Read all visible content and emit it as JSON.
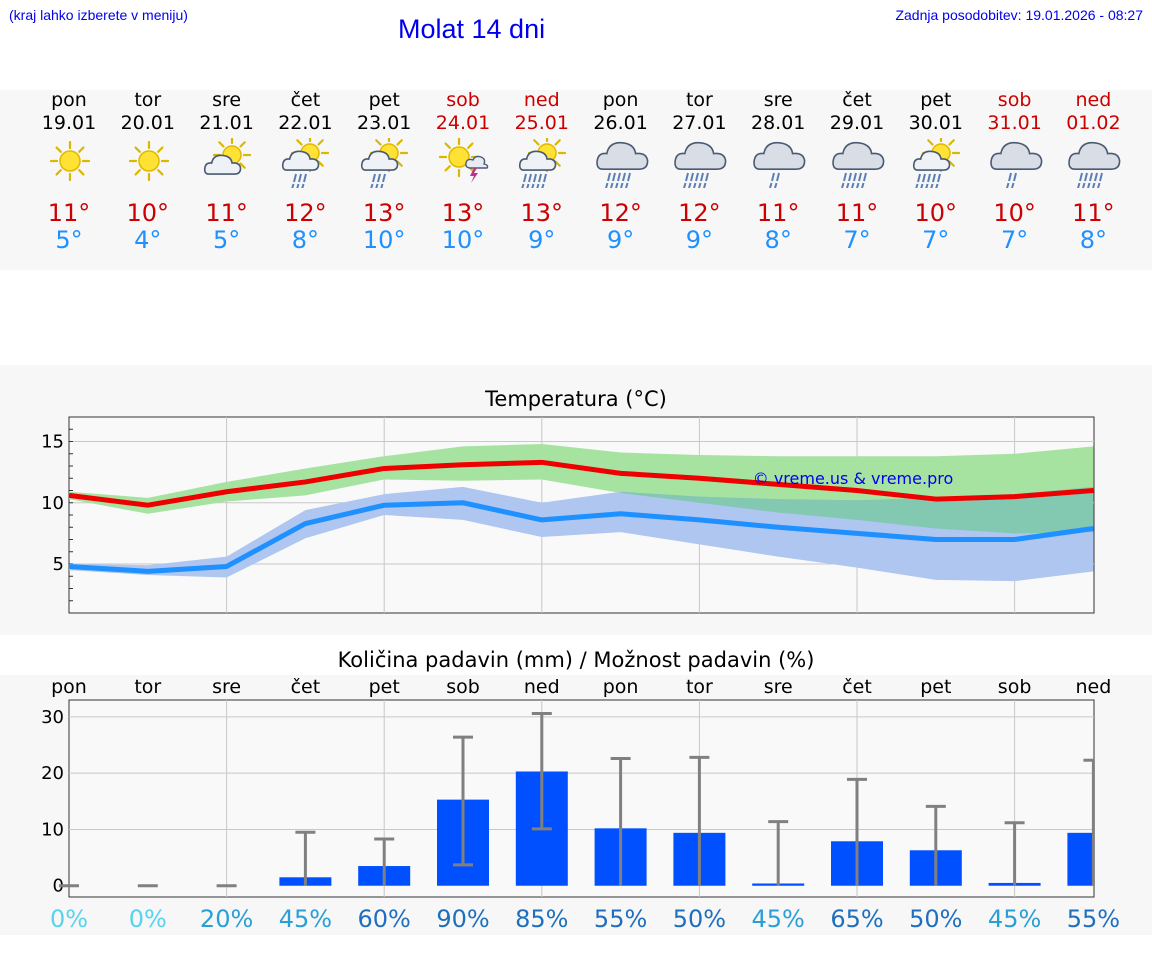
{
  "header": {
    "hint": "(kraj lahko izberete v meniju)",
    "title": "Molat 14 dni",
    "updated": "Zadnja posodobitev: 19.01.2026 - 08:27"
  },
  "days": [
    {
      "name": "pon",
      "date": "19.01",
      "weekend": false,
      "icon": "sunny-icon",
      "tmax": "11°",
      "tmin": "5°"
    },
    {
      "name": "tor",
      "date": "20.01",
      "weekend": false,
      "icon": "sunny-icon",
      "tmax": "10°",
      "tmin": "4°"
    },
    {
      "name": "sre",
      "date": "21.01",
      "weekend": false,
      "icon": "sun-cloud-icon",
      "tmax": "11°",
      "tmin": "5°"
    },
    {
      "name": "čet",
      "date": "22.01",
      "weekend": false,
      "icon": "sun-cloud-rain-icon",
      "tmax": "12°",
      "tmin": "8°"
    },
    {
      "name": "pet",
      "date": "23.01",
      "weekend": false,
      "icon": "sun-cloud-rain-icon",
      "tmax": "13°",
      "tmin": "10°"
    },
    {
      "name": "sob",
      "date": "24.01",
      "weekend": true,
      "icon": "sun-thunder-icon",
      "tmax": "13°",
      "tmin": "10°"
    },
    {
      "name": "ned",
      "date": "25.01",
      "weekend": true,
      "icon": "sun-heavy-rain-icon",
      "tmax": "13°",
      "tmin": "9°"
    },
    {
      "name": "pon",
      "date": "26.01",
      "weekend": false,
      "icon": "cloud-heavy-rain-icon",
      "tmax": "12°",
      "tmin": "9°"
    },
    {
      "name": "tor",
      "date": "27.01",
      "weekend": false,
      "icon": "cloud-heavy-rain-icon",
      "tmax": "12°",
      "tmin": "9°"
    },
    {
      "name": "sre",
      "date": "28.01",
      "weekend": false,
      "icon": "cloud-rain-icon",
      "tmax": "11°",
      "tmin": "8°"
    },
    {
      "name": "čet",
      "date": "29.01",
      "weekend": false,
      "icon": "cloud-heavy-rain-icon",
      "tmax": "11°",
      "tmin": "7°"
    },
    {
      "name": "pet",
      "date": "30.01",
      "weekend": false,
      "icon": "sun-heavy-rain-icon",
      "tmax": "10°",
      "tmin": "7°"
    },
    {
      "name": "sob",
      "date": "31.01",
      "weekend": true,
      "icon": "cloud-rain-icon",
      "tmax": "10°",
      "tmin": "7°"
    },
    {
      "name": "ned",
      "date": "01.02",
      "weekend": true,
      "icon": "cloud-heavy-rain-icon",
      "tmax": "11°",
      "tmin": "8°"
    }
  ],
  "colors": {
    "max_line": "#ee0000",
    "min_line": "#1e90ff",
    "max_band": "#a6e3a1",
    "min_band": "#aec6f0",
    "overlap_band": "#7ec8a8",
    "bar": "#0050ff",
    "whisker": "#808080"
  },
  "chart_data": [
    {
      "type": "line",
      "title": "Temperatura (°C)",
      "watermark": "© vreme.us & vreme.pro",
      "x": [
        0,
        1,
        2,
        3,
        4,
        5,
        6,
        7,
        8,
        9,
        10,
        11,
        12,
        13
      ],
      "ylim": [
        1,
        17
      ],
      "yticks": [
        5,
        10,
        15
      ],
      "series": [
        {
          "name": "max",
          "values": [
            10.6,
            9.8,
            10.9,
            11.7,
            12.8,
            13.1,
            13.3,
            12.4,
            12.0,
            11.5,
            11.0,
            10.3,
            10.5,
            11.0
          ],
          "band_low": [
            10.3,
            9.1,
            10.1,
            10.6,
            11.9,
            11.8,
            11.9,
            10.8,
            10.0,
            9.2,
            8.6,
            7.9,
            7.5,
            7.6
          ],
          "band_high": [
            10.9,
            10.4,
            11.7,
            12.8,
            13.8,
            14.6,
            14.8,
            14.1,
            13.9,
            13.8,
            13.8,
            13.8,
            14.0,
            14.6
          ]
        },
        {
          "name": "min",
          "values": [
            4.8,
            4.4,
            4.8,
            8.3,
            9.8,
            10.0,
            8.6,
            9.1,
            8.6,
            8.0,
            7.5,
            7.0,
            7.0,
            7.9
          ],
          "band_low": [
            4.5,
            4.1,
            3.9,
            7.1,
            9.0,
            8.6,
            7.2,
            7.6,
            6.6,
            5.6,
            4.7,
            3.7,
            3.6,
            4.4
          ],
          "band_high": [
            5.0,
            4.9,
            5.6,
            9.4,
            10.7,
            11.3,
            10.0,
            10.9,
            10.5,
            10.3,
            10.2,
            10.4,
            10.7,
            11.3
          ]
        }
      ]
    },
    {
      "type": "bar",
      "title": "Količina padavin (mm) / Možnost padavin (%)",
      "categories": [
        "pon",
        "tor",
        "sre",
        "čet",
        "pet",
        "sob",
        "ned",
        "pon",
        "tor",
        "sre",
        "čet",
        "pet",
        "sob",
        "ned"
      ],
      "ylim": [
        -2,
        33
      ],
      "yticks": [
        0,
        10,
        20,
        30
      ],
      "values": [
        0,
        0,
        0,
        1.5,
        3.5,
        15.3,
        20.3,
        10.2,
        9.4,
        0.4,
        7.9,
        6.3,
        0.5,
        9.4
      ],
      "whisker_low": [
        0,
        0,
        0,
        0,
        0,
        3.7,
        10.1,
        0,
        0,
        0,
        0,
        0,
        0,
        0
      ],
      "whisker_high": [
        0,
        0,
        0,
        9.5,
        8.3,
        26.4,
        30.6,
        22.6,
        22.8,
        11.4,
        18.9,
        14.1,
        11.2,
        22.3
      ],
      "probability": [
        "0%",
        "0%",
        "20%",
        "45%",
        "60%",
        "90%",
        "85%",
        "55%",
        "50%",
        "45%",
        "65%",
        "50%",
        "45%",
        "55%"
      ],
      "probability_colors": [
        "#57d3f0",
        "#57d3f0",
        "#2a9fd6",
        "#2a9fd6",
        "#1f6fbf",
        "#1f6fbf",
        "#1f6fbf",
        "#1f6fbf",
        "#1f6fbf",
        "#2a9fd6",
        "#1f6fbf",
        "#1f6fbf",
        "#2a9fd6",
        "#1f6fbf"
      ]
    }
  ]
}
